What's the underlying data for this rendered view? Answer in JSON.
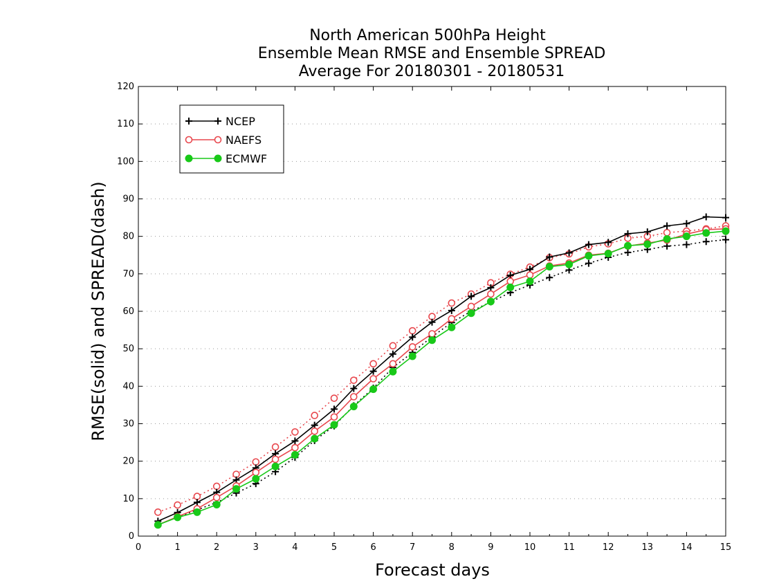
{
  "chart_data": {
    "type": "line",
    "title_lines": [
      "North American 500hPa Height",
      "Ensemble Mean RMSE and Ensemble SPREAD",
      "Average For 20180301 - 20180531"
    ],
    "xlabel": "Forecast days",
    "ylabel": "RMSE(solid) and SPREAD(dash)",
    "xlim": [
      0,
      15
    ],
    "ylim": [
      0,
      120
    ],
    "xticks": [
      "0",
      "1",
      "2",
      "3",
      "4",
      "5",
      "6",
      "7",
      "8",
      "9",
      "10",
      "11",
      "12",
      "13",
      "14",
      "15"
    ],
    "yticks": [
      "0",
      "10",
      "20",
      "30",
      "40",
      "50",
      "60",
      "70",
      "80",
      "90",
      "100",
      "110",
      "120"
    ],
    "grid": true,
    "legend_position": "top-left",
    "x": [
      0.5,
      1,
      1.5,
      2,
      2.5,
      3,
      3.5,
      4,
      4.5,
      5,
      5.5,
      6,
      6.5,
      7,
      7.5,
      8,
      8.5,
      9,
      9.5,
      10,
      10.5,
      11,
      11.5,
      12,
      12.5,
      13,
      13.5,
      14,
      14.5,
      15
    ],
    "series": [
      {
        "name": "NCEP",
        "color": "#000000",
        "marker": "plus",
        "rmse": [
          4.0,
          6.3,
          9.0,
          11.7,
          15.0,
          18.2,
          22.0,
          25.4,
          29.6,
          33.9,
          39.4,
          44.0,
          48.6,
          53.1,
          57.1,
          60.2,
          64.0,
          66.3,
          69.6,
          71.2,
          74.5,
          75.6,
          77.8,
          78.4,
          80.7,
          81.2,
          82.8,
          83.4,
          85.2,
          85.0
        ],
        "spread": [
          3.0,
          5.1,
          7.0,
          9.0,
          11.5,
          14.0,
          17.2,
          21.0,
          25.5,
          29.4,
          34.8,
          39.5,
          45.0,
          49.0,
          53.2,
          57.0,
          60.0,
          62.5,
          65.0,
          67.0,
          69.0,
          71.0,
          72.8,
          74.4,
          75.7,
          76.5,
          77.4,
          77.8,
          78.6,
          79.1
        ]
      },
      {
        "name": "NAEFS",
        "color": "#e8474d",
        "marker": "circle",
        "rmse": [
          3.0,
          5.2,
          7.3,
          10.3,
          13.4,
          17.0,
          20.5,
          23.6,
          28.0,
          31.8,
          37.2,
          42.0,
          46.0,
          50.5,
          54.0,
          58.0,
          61.3,
          64.6,
          68.0,
          69.7,
          72.1,
          72.9,
          75.0,
          75.5,
          77.4,
          78.2,
          79.0,
          80.6,
          81.8,
          82.0
        ],
        "spread": [
          6.4,
          8.3,
          10.6,
          13.3,
          16.5,
          19.8,
          23.8,
          27.8,
          32.2,
          36.8,
          41.6,
          46.0,
          50.8,
          54.8,
          58.6,
          62.2,
          64.6,
          67.6,
          69.9,
          71.8,
          74.3,
          75.3,
          77.2,
          78.0,
          79.5,
          80.0,
          81.0,
          81.4,
          82.0,
          82.8
        ]
      },
      {
        "name": "ECMWF",
        "color": "#19c919",
        "marker": "filled-circle",
        "rmse": [
          3.0,
          5.0,
          6.4,
          8.4,
          12.6,
          15.3,
          18.6,
          21.7,
          26.0,
          29.7,
          34.6,
          39.2,
          43.9,
          48.0,
          52.3,
          55.7,
          59.5,
          62.6,
          66.4,
          68.0,
          71.9,
          72.5,
          74.8,
          75.4,
          77.5,
          77.9,
          79.3,
          80.0,
          80.9,
          81.4
        ]
      }
    ]
  }
}
